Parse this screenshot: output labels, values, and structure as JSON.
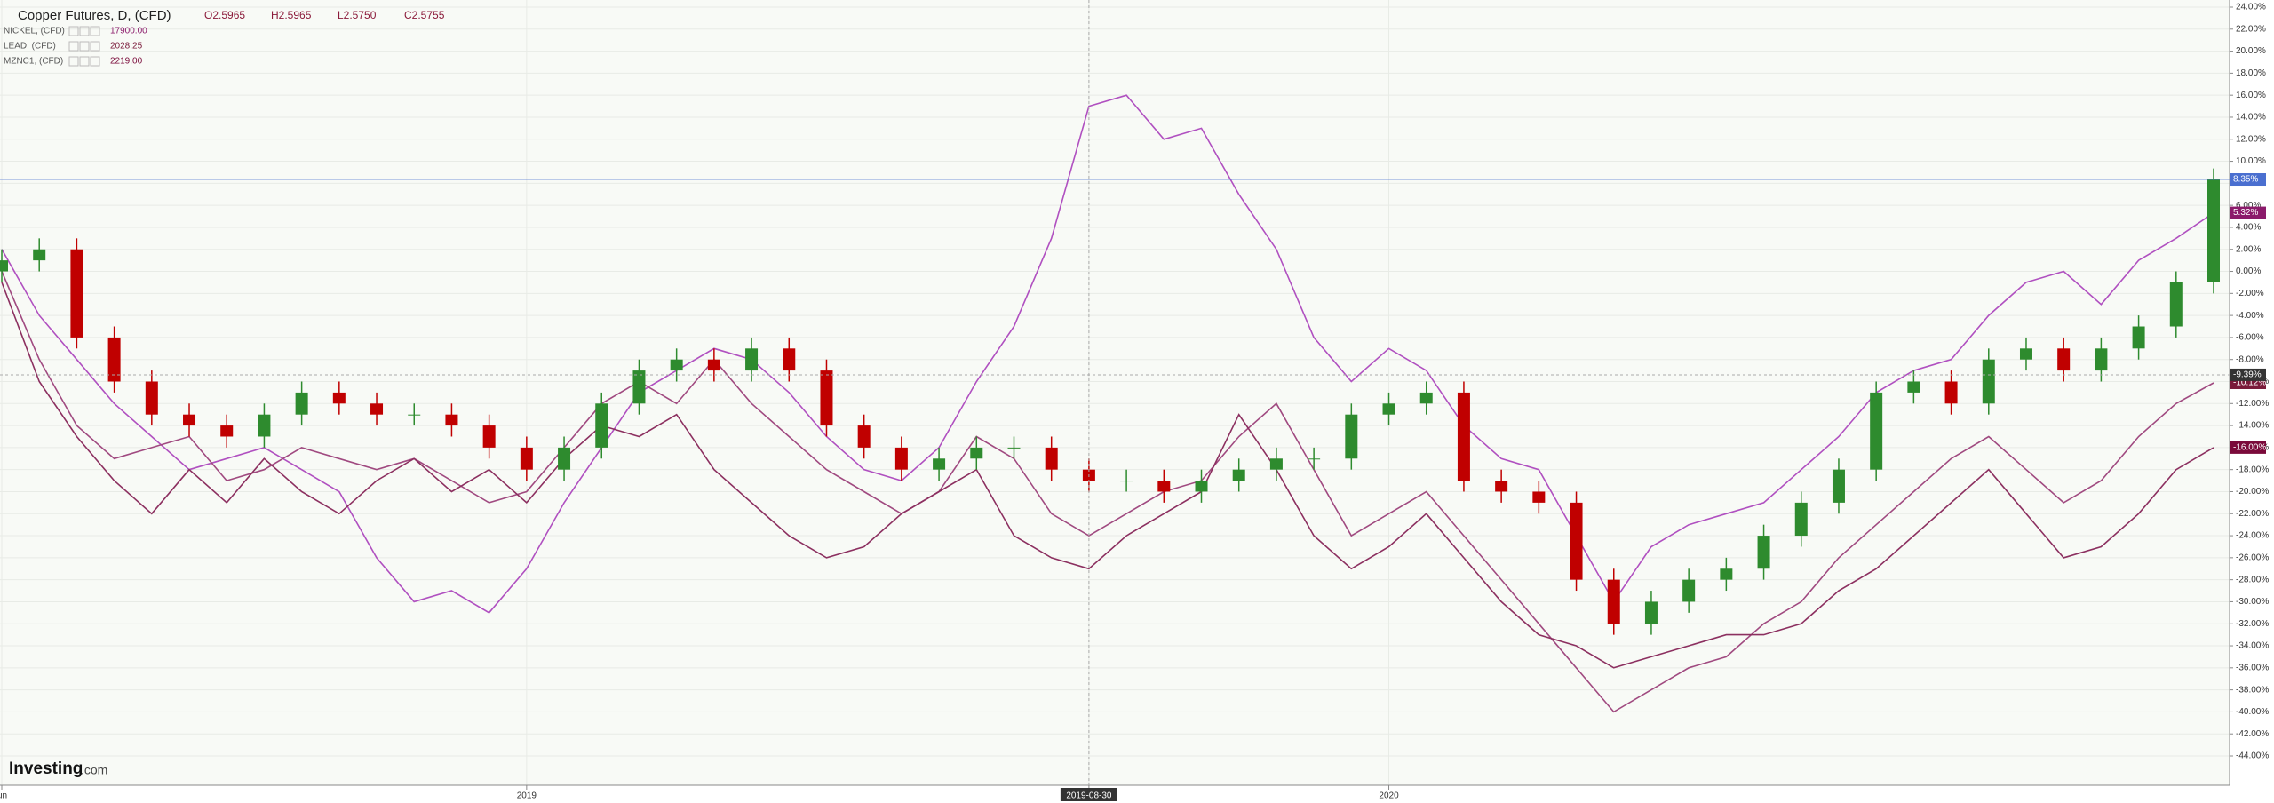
{
  "chart_data": {
    "type": "candlestick-compare",
    "title": "Copper Futures, D, (CFD)",
    "ohlc_text": [
      "O2.5965",
      "H2.5965",
      "L2.5750",
      "C2.5755"
    ],
    "watermark": [
      "Investing",
      ".com"
    ],
    "categories": [
      "Jun",
      null,
      null,
      null,
      null,
      null,
      null,
      null,
      null,
      null,
      null,
      null,
      null,
      null,
      "2019",
      null,
      null,
      null,
      null,
      null,
      null,
      null,
      null,
      null,
      null,
      null,
      null,
      null,
      null,
      "2019-08-30",
      null,
      null,
      null,
      null,
      null,
      null,
      null,
      "2020",
      null,
      null,
      null,
      null,
      null,
      null,
      null,
      null,
      null,
      null,
      null,
      null,
      null,
      null,
      null,
      null,
      null,
      null,
      null,
      null,
      null,
      null
    ],
    "crosshair": {
      "x": "2019-08-30",
      "y": {
        "value": -9.39,
        "label": "-9.39%"
      }
    },
    "ylim": [
      -44,
      24
    ],
    "yticks": [
      {
        "value": 24,
        "label": "24.00%"
      },
      {
        "value": 22,
        "label": "22.00%"
      },
      {
        "value": 20,
        "label": "20.00%"
      },
      {
        "value": 18,
        "label": "18.00%"
      },
      {
        "value": 16,
        "label": "16.00%"
      },
      {
        "value": 14,
        "label": "14.00%"
      },
      {
        "value": 12,
        "label": "12.00%"
      },
      {
        "value": 10,
        "label": "10.00%"
      },
      {
        "value": 8,
        "label": "8.00%"
      },
      {
        "value": 6,
        "label": "6.00%"
      },
      {
        "value": 4,
        "label": "4.00%"
      },
      {
        "value": 2,
        "label": "2.00%"
      },
      {
        "value": 0,
        "label": "0.00%"
      },
      {
        "value": -2,
        "label": "-2.00%"
      },
      {
        "value": -4,
        "label": "-4.00%"
      },
      {
        "value": -6,
        "label": "-6.00%"
      },
      {
        "value": -8,
        "label": "-8.00%"
      },
      {
        "value": -10,
        "label": "-10.00%"
      },
      {
        "value": -12,
        "label": "-12.00%"
      },
      {
        "value": -14,
        "label": "-14.00%"
      },
      {
        "value": -16,
        "label": "-16.00%"
      },
      {
        "value": -18,
        "label": "-18.00%"
      },
      {
        "value": -20,
        "label": "-20.00%"
      },
      {
        "value": -22,
        "label": "-22.00%"
      },
      {
        "value": -24,
        "label": "-24.00%"
      },
      {
        "value": -26,
        "label": "-26.00%"
      },
      {
        "value": -28,
        "label": "-28.00%"
      },
      {
        "value": -30,
        "label": "-30.00%"
      },
      {
        "value": -32,
        "label": "-32.00%"
      },
      {
        "value": -34,
        "label": "-34.00%"
      },
      {
        "value": -36,
        "label": "-36.00%"
      },
      {
        "value": -38,
        "label": "-38.00%"
      },
      {
        "value": -40,
        "label": "-40.00%"
      },
      {
        "value": -42,
        "label": "-42.00%"
      },
      {
        "value": -44,
        "label": "-44.00%"
      }
    ],
    "grid": true,
    "main": {
      "color": "#4a6fd0",
      "up_color": "#2e8b2e",
      "down_color": "#c00000",
      "end_label": "8.35%",
      "open": [
        0,
        1,
        2,
        -6,
        -10,
        -13,
        -14,
        -15,
        -13,
        -11,
        -12,
        -13,
        -13,
        -14,
        -16,
        -18,
        -16,
        -12,
        -9,
        -8,
        -9,
        -7,
        -9,
        -14,
        -16,
        -18,
        -17,
        -16,
        -16,
        -18,
        -19,
        -19,
        -20,
        -19,
        -18,
        -17,
        -17,
        -13,
        -12,
        -11,
        -19,
        -20,
        -21,
        -28,
        -32,
        -30,
        -28,
        -27,
        -24,
        -21,
        -18,
        -11,
        -10,
        -12,
        -8,
        -7,
        -9,
        -7,
        -5,
        -1
      ],
      "high": [
        2,
        3,
        3,
        -5,
        -9,
        -12,
        -13,
        -12,
        -10,
        -10,
        -11,
        -12,
        -12,
        -13,
        -15,
        -15,
        -11,
        -8,
        -7,
        -7,
        -6,
        -6,
        -8,
        -13,
        -15,
        -16,
        -15,
        -15,
        -15,
        -17,
        -18,
        -18,
        -18,
        -17,
        -16,
        -16,
        -12,
        -11,
        -10,
        -10,
        -18,
        -19,
        -20,
        -27,
        -29,
        -27,
        -26,
        -23,
        -20,
        -17,
        -10,
        -9,
        -9,
        -7,
        -6,
        -6,
        -6,
        -4,
        0,
        9.35
      ],
      "low": [
        -1,
        0,
        -7,
        -11,
        -14,
        -15,
        -16,
        -16,
        -14,
        -13,
        -14,
        -14,
        -15,
        -17,
        -19,
        -19,
        -17,
        -13,
        -10,
        -10,
        -10,
        -10,
        -15,
        -17,
        -19,
        -19,
        -18,
        -17,
        -19,
        -20,
        -20,
        -21,
        -21,
        -20,
        -19,
        -18,
        -18,
        -14,
        -13,
        -20,
        -21,
        -22,
        -29,
        -33,
        -33,
        -31,
        -29,
        -28,
        -25,
        -22,
        -19,
        -12,
        -13,
        -13,
        -9,
        -10,
        -10,
        -8,
        -6,
        -2
      ],
      "close": [
        1,
        2,
        -6,
        -10,
        -13,
        -14,
        -15,
        -13,
        -11,
        -12,
        -13,
        -13,
        -14,
        -16,
        -18,
        -16,
        -12,
        -9,
        -8,
        -9,
        -7,
        -9,
        -14,
        -16,
        -18,
        -17,
        -16,
        -16,
        -18,
        -19,
        -19,
        -20,
        -19,
        -18,
        -17,
        -17,
        -13,
        -12,
        -11,
        -19,
        -20,
        -21,
        -28,
        -32,
        -30,
        -28,
        -27,
        -24,
        -21,
        -18,
        -11,
        -10,
        -12,
        -8,
        -7,
        -9,
        -7,
        -5,
        -1,
        8.35
      ]
    },
    "series": [
      {
        "name": "NICKEL, (CFD)",
        "price": "17900.00",
        "color": "#b050c0",
        "tag_color": "#8b1a6b",
        "end_label": "5.32%",
        "values": [
          2,
          -4,
          -8,
          -12,
          -15,
          -18,
          -17,
          -16,
          -18,
          -20,
          -26,
          -30,
          -29,
          -31,
          -27,
          -21,
          -16,
          -11,
          -9,
          -7,
          -8,
          -11,
          -15,
          -18,
          -19,
          -16,
          -10,
          -5,
          3,
          15,
          16,
          12,
          13,
          7,
          2,
          -6,
          -10,
          -7,
          -9,
          -14,
          -17,
          -18,
          -24,
          -30,
          -25,
          -23,
          -22,
          -21,
          -18,
          -15,
          -11,
          -9,
          -8,
          -4,
          -1,
          0,
          -3,
          1,
          3,
          5.32
        ]
      },
      {
        "name": "LEAD, (CFD)",
        "price": "2028.25",
        "color": "#a04a80",
        "tag_color": "#7a1a3a",
        "end_label": "-10.12%",
        "values": [
          0,
          -8,
          -14,
          -17,
          -16,
          -15,
          -19,
          -18,
          -16,
          -17,
          -18,
          -17,
          -19,
          -21,
          -20,
          -16,
          -12,
          -10,
          -12,
          -8,
          -12,
          -15,
          -18,
          -20,
          -22,
          -20,
          -15,
          -17,
          -22,
          -24,
          -22,
          -20,
          -19,
          -15,
          -12,
          -18,
          -24,
          -22,
          -20,
          -24,
          -28,
          -32,
          -36,
          -40,
          -38,
          -36,
          -35,
          -32,
          -30,
          -26,
          -23,
          -20,
          -17,
          -15,
          -18,
          -21,
          -19,
          -15,
          -12,
          -10.12
        ]
      },
      {
        "name": "MZNC1, (CFD)",
        "price": "2219.00",
        "color": "#8c3060",
        "tag_color": "#7a0a3a",
        "end_label": "-16.00%",
        "values": [
          -1,
          -10,
          -15,
          -19,
          -22,
          -18,
          -21,
          -17,
          -20,
          -22,
          -19,
          -17,
          -20,
          -18,
          -21,
          -17,
          -14,
          -15,
          -13,
          -18,
          -21,
          -24,
          -26,
          -25,
          -22,
          -20,
          -18,
          -24,
          -26,
          -27,
          -24,
          -22,
          -20,
          -13,
          -18,
          -24,
          -27,
          -25,
          -22,
          -26,
          -30,
          -33,
          -34,
          -36,
          -35,
          -34,
          -33,
          -33,
          -32,
          -29,
          -27,
          -24,
          -21,
          -18,
          -22,
          -26,
          -25,
          -22,
          -18,
          -16
        ]
      }
    ]
  }
}
